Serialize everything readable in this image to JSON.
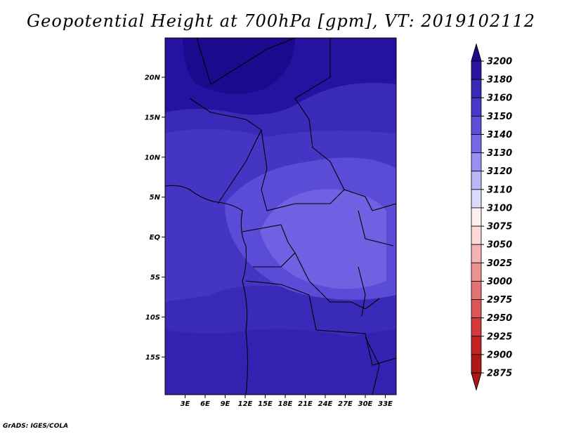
{
  "title": "Geopotential Height at 700hPa [gpm], VT: 2019102112",
  "credit": "GrADS: IGES/COLA",
  "map": {
    "lat_ticks": [
      "20N",
      "15N",
      "10N",
      "5N",
      "EQ",
      "5S",
      "10S",
      "15S"
    ],
    "lon_ticks": [
      "3E",
      "6E",
      "9E",
      "12E",
      "15E",
      "18E",
      "21E",
      "24E",
      "27E",
      "30E",
      "33E"
    ]
  },
  "colorbar": {
    "levels": [
      "3200",
      "3180",
      "3160",
      "3150",
      "3140",
      "3130",
      "3120",
      "3110",
      "3100",
      "3075",
      "3050",
      "3025",
      "3000",
      "2975",
      "2950",
      "2925",
      "2900",
      "2875"
    ],
    "colors": [
      "#1e0a8c",
      "#2a15a0",
      "#3a28b8",
      "#4a38c8",
      "#5c50d8",
      "#7868e6",
      "#9a8ef0",
      "#bcb6f6",
      "#dcdafc",
      "#fff0f0",
      "#fcd8d8",
      "#f4b2b2",
      "#ec9292",
      "#e47474",
      "#dc5454",
      "#d43a3a",
      "#c42424",
      "#b01818"
    ]
  }
}
